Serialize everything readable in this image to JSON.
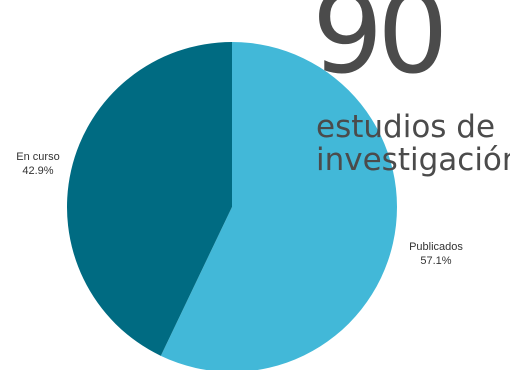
{
  "headline": {
    "number": "90",
    "line1": "estudios de",
    "line2": "investigación"
  },
  "chart_data": {
    "type": "pie",
    "slices": [
      {
        "label": "Publicados",
        "value": 57.1,
        "pct_text": "57.1%",
        "color": "#42b8d8"
      },
      {
        "label": "En curso",
        "value": 42.9,
        "pct_text": "42.9%",
        "color": "#006b82"
      }
    ]
  }
}
